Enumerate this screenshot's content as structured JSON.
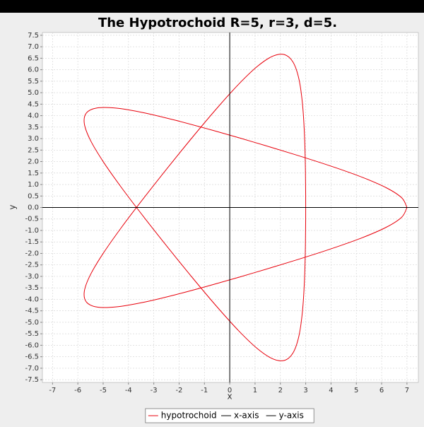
{
  "chart_data": {
    "type": "line",
    "title": "The Hypotrochoid R=5, r=3, d=5.",
    "x_label": "x",
    "y_label": "y",
    "xlim": [
      -7.4,
      7.45
    ],
    "ylim": [
      -7.62,
      7.62
    ],
    "xticks": [
      -7,
      -6,
      -5,
      -4,
      -3,
      -2,
      -1,
      0,
      1,
      2,
      3,
      4,
      5,
      6,
      7
    ],
    "yticks": [
      -7.5,
      {
        "value": -7,
        "label": "-7.0"
      },
      -6.5,
      {
        "value": -6,
        "label": "-6.0"
      },
      -5.5,
      {
        "value": -5,
        "label": "-5.0"
      },
      -4.5,
      {
        "value": -4,
        "label": "-4.0"
      },
      -3.5,
      {
        "value": -3,
        "label": "-3.0"
      },
      -2.5,
      {
        "value": -2,
        "label": "-2.0"
      },
      -1.5,
      {
        "value": -1,
        "label": "-1.0"
      },
      -0.5,
      {
        "value": 0,
        "label": "0.0"
      },
      0.5,
      {
        "value": 1,
        "label": "1.0"
      },
      1.5,
      {
        "value": 2,
        "label": "2.0"
      },
      2.5,
      {
        "value": 3,
        "label": "3.0"
      },
      3.5,
      {
        "value": 4,
        "label": "4.0"
      },
      4.5,
      {
        "value": 5,
        "label": "5.0"
      },
      5.5,
      {
        "value": 6,
        "label": "6.0"
      },
      6.5,
      {
        "value": 7,
        "label": "7.0"
      },
      7.5
    ],
    "grid": true,
    "legend": "bottom",
    "series": [
      {
        "name": "hypotrochoid",
        "color": "#e8000b",
        "smooth": true,
        "x": [
          7,
          6.793,
          6.186,
          5.221,
          3.964,
          2.5,
          0.927,
          -0.653,
          -2.141,
          -3.447,
          -4.5,
          -5.248,
          -5.663,
          -5.744,
          -5.509,
          -5,
          -4.273,
          -3.392,
          -2.427,
          -1.444,
          -0.5,
          0.357,
          1.095,
          1.699,
          2.163,
          2.5,
          2.728,
          2.869,
          2.95,
          2.989,
          3,
          2.989,
          2.95,
          2.869,
          2.728,
          2.5,
          2.163,
          1.699,
          1.095,
          0.357,
          -0.5,
          -1.444,
          -2.427,
          -3.392,
          -4.273,
          -5,
          -5.509,
          -5.744,
          -5.663,
          -5.248,
          -4.5,
          -3.447,
          -2.141,
          -0.653,
          0.927,
          2.5,
          3.964,
          5.221,
          6.186,
          6.793,
          7
        ],
        "values": [
          0,
          -0.422,
          -0.858,
          -1.321,
          -1.814,
          -2.33,
          -2.854,
          -3.355,
          -3.797,
          -4.138,
          -4.33,
          -4.334,
          -4.115,
          -3.652,
          -2.942,
          -2,
          -0.862,
          0.416,
          1.763,
          3.098,
          4.33,
          5.374,
          6.149,
          6.591,
          6.658,
          6.33,
          5.618,
          4.557,
          3.21,
          1.658,
          0,
          -1.658,
          -3.21,
          -4.557,
          -5.618,
          -6.33,
          -6.658,
          -6.591,
          -6.149,
          -5.374,
          -4.33,
          -3.098,
          -1.763,
          -0.416,
          0.862,
          2,
          2.942,
          3.652,
          4.115,
          4.334,
          4.33,
          4.138,
          3.797,
          3.355,
          2.854,
          2.33,
          1.814,
          1.321,
          0.858,
          0.422,
          0
        ]
      },
      {
        "name": "x-axis",
        "color": "#000000",
        "x": [
          -7.4,
          7.45
        ],
        "values": [
          0,
          0
        ]
      },
      {
        "name": "y-axis",
        "color": "#000000",
        "x": [
          0,
          0
        ],
        "values": [
          -7.62,
          7.62
        ]
      }
    ]
  }
}
